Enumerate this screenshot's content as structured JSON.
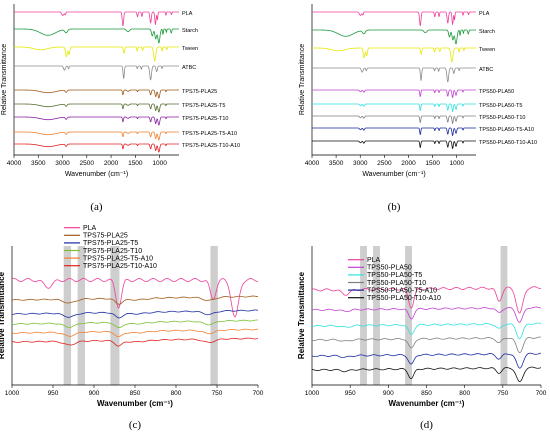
{
  "panels": [
    {
      "letter": "(a)",
      "xlabel": "Wavenumber (cm⁻¹)",
      "ylabel": "Relative Transmittance",
      "xlim": [
        4000,
        600
      ],
      "xticks": [
        4000,
        3500,
        3000,
        2500,
        2000,
        1500,
        1000
      ],
      "xtick_labels": [
        "4000",
        "3500",
        "3000",
        "2500",
        "2000",
        "1500",
        "1000"
      ],
      "series": [
        {
          "name": "PLA",
          "color": "#ee3e9a"
        },
        {
          "name": "Starch",
          "color": "#1a9a3a"
        },
        {
          "name": "Tween",
          "color": "#e8e800"
        },
        {
          "name": "ATBC",
          "color": "#8c8c8c"
        },
        {
          "name": "TPS75-PLA25",
          "color": "#a05a1a"
        },
        {
          "name": "TPS75-PLA25-T5",
          "color": "#556b2f"
        },
        {
          "name": "TPS75-PLA25-T10",
          "color": "#8a1fa0"
        },
        {
          "name": "TPS75-PLA25-T5-A10",
          "color": "#f08030"
        },
        {
          "name": "TPS75-PLA25-T10-A10",
          "color": "#e02020"
        }
      ]
    },
    {
      "letter": "(b)",
      "xlabel": "Wavenumber (cm⁻¹)",
      "ylabel": "Relative Transmittance",
      "xlim": [
        4000,
        600
      ],
      "xticks": [
        4000,
        3500,
        3000,
        2500,
        2000,
        1500,
        1000
      ],
      "xtick_labels": [
        "4000",
        "3500",
        "3000",
        "2500",
        "2000",
        "1500",
        "1000"
      ],
      "series": [
        {
          "name": "PLA",
          "color": "#ee3e9a"
        },
        {
          "name": "Starch",
          "color": "#1a9a3a"
        },
        {
          "name": "Tween",
          "color": "#e8e800"
        },
        {
          "name": "ATBC",
          "color": "#8c8c8c"
        },
        {
          "name": "TPS50-PLA50",
          "color": "#c040d0"
        },
        {
          "name": "TPS50-PLA50-T5",
          "color": "#30e0e0"
        },
        {
          "name": "TPS50-PLA50-T10",
          "color": "#808080"
        },
        {
          "name": "TPS50-PLA50-T5-A10",
          "color": "#1a2aa0"
        },
        {
          "name": "TPS50-PLA50-T10-A10",
          "color": "#111111"
        }
      ]
    },
    {
      "letter": "(c)",
      "xlabel": "Wavenumber (cm⁻¹)",
      "ylabel": "Relative Transmittance",
      "xlim": [
        1000,
        700
      ],
      "xticks": [
        1000,
        950,
        900,
        850,
        800,
        750,
        700
      ],
      "xtick_labels": [
        "1000",
        "950",
        "900",
        "850",
        "800",
        "750",
        "700"
      ],
      "bands": [
        [
          937,
          928
        ],
        [
          920,
          911
        ],
        [
          880,
          869
        ],
        [
          758,
          749
        ]
      ],
      "series": [
        {
          "name": "PLA",
          "color": "#ee3e9a"
        },
        {
          "name": "TPS75-PLA25",
          "color": "#a05a1a"
        },
        {
          "name": "TPS75-PLA25-T5",
          "color": "#1a2aa0"
        },
        {
          "name": "TPS75-PLA25-T10",
          "color": "#7ac030"
        },
        {
          "name": "TPS75-PLA25-T5-A10",
          "color": "#f08030"
        },
        {
          "name": "TPS75-PLA25-T10-A10",
          "color": "#e02020"
        }
      ]
    },
    {
      "letter": "(d)",
      "xlabel": "Wavenumber (cm⁻¹)",
      "ylabel": "Relative Transmittance",
      "xlim": [
        1000,
        700
      ],
      "xticks": [
        1000,
        950,
        900,
        850,
        800,
        750,
        700
      ],
      "xtick_labels": [
        "1000",
        "950",
        "900",
        "850",
        "800",
        "750",
        "700"
      ],
      "bands": [
        [
          937,
          928
        ],
        [
          920,
          911
        ],
        [
          878,
          869
        ],
        [
          753,
          744
        ]
      ],
      "series": [
        {
          "name": "PLA",
          "color": "#ee3e9a"
        },
        {
          "name": "TPS50-PLA50",
          "color": "#c040d0"
        },
        {
          "name": "TPS50-PLA50-T5",
          "color": "#30e0e0"
        },
        {
          "name": "TPS50-PLA50-T10",
          "color": "#808080"
        },
        {
          "name": "TPS50-PLA50-T5-A10",
          "color": "#1a2aa0"
        },
        {
          "name": "TPS50-PLA50-T10-A10",
          "color": "#111111"
        }
      ]
    }
  ],
  "chart_data": [
    {
      "type": "line",
      "panel": "(a)",
      "xlabel": "Wavenumber (cm⁻¹)",
      "ylabel": "Relative Transmittance",
      "xlim": [
        4000,
        600
      ],
      "grid": false,
      "series": [
        {
          "name": "PLA",
          "peaks": [
            2995,
            2945,
            1755,
            1455,
            1365,
            1185,
            1085,
            1045,
            870,
            755
          ]
        },
        {
          "name": "Starch",
          "peaks": [
            3300,
            2925,
            1650,
            1150,
            1080,
            1015,
            930,
            860,
            760
          ]
        },
        {
          "name": "Tween",
          "peaks": [
            3450,
            2920,
            2865,
            1735,
            1460,
            1350,
            1100,
            950,
            850
          ]
        },
        {
          "name": "ATBC",
          "peaks": [
            2960,
            2875,
            1740,
            1460,
            1375,
            1185,
            1060,
            950
          ]
        },
        {
          "name": "TPS75-PLA25",
          "peaks": [
            3300,
            2925,
            1755,
            1650,
            1455,
            1185,
            1080,
            1015,
            870
          ]
        },
        {
          "name": "TPS75-PLA25-T5",
          "peaks": [
            3300,
            2925,
            1755,
            1650,
            1455,
            1185,
            1080,
            1015,
            870
          ]
        },
        {
          "name": "TPS75-PLA25-T10",
          "peaks": [
            3300,
            2925,
            1755,
            1650,
            1455,
            1185,
            1080,
            1015,
            870
          ]
        },
        {
          "name": "TPS75-PLA25-T5-A10",
          "peaks": [
            3300,
            2925,
            1755,
            1650,
            1455,
            1185,
            1080,
            1015,
            870
          ]
        },
        {
          "name": "TPS75-PLA25-T10-A10",
          "peaks": [
            3300,
            2925,
            1755,
            1650,
            1455,
            1185,
            1080,
            1015,
            870
          ]
        }
      ]
    },
    {
      "type": "line",
      "panel": "(b)",
      "xlabel": "Wavenumber (cm⁻¹)",
      "ylabel": "Relative Transmittance",
      "xlim": [
        4000,
        600
      ],
      "grid": false,
      "series": [
        {
          "name": "PLA",
          "peaks": [
            2995,
            2945,
            1755,
            1455,
            1365,
            1185,
            1085,
            1045,
            870,
            755
          ]
        },
        {
          "name": "Starch",
          "peaks": [
            3300,
            2925,
            1650,
            1150,
            1080,
            1015,
            930,
            860,
            760
          ]
        },
        {
          "name": "Tween",
          "peaks": [
            3450,
            2920,
            2865,
            1735,
            1460,
            1350,
            1100,
            950,
            850
          ]
        },
        {
          "name": "ATBC",
          "peaks": [
            2960,
            2875,
            1740,
            1460,
            1375,
            1185,
            1060,
            950
          ]
        },
        {
          "name": "TPS50-PLA50",
          "peaks": [
            2995,
            2925,
            1755,
            1455,
            1365,
            1185,
            1085,
            1015,
            870
          ]
        },
        {
          "name": "TPS50-PLA50-T5",
          "peaks": [
            2995,
            2925,
            1755,
            1455,
            1365,
            1185,
            1085,
            1015,
            870
          ]
        },
        {
          "name": "TPS50-PLA50-T10",
          "peaks": [
            2995,
            2925,
            1755,
            1455,
            1365,
            1185,
            1085,
            1015,
            870
          ]
        },
        {
          "name": "TPS50-PLA50-T5-A10",
          "peaks": [
            2995,
            2925,
            1755,
            1455,
            1365,
            1185,
            1085,
            1015,
            870
          ]
        },
        {
          "name": "TPS50-PLA50-T10-A10",
          "peaks": [
            2995,
            2925,
            1755,
            1455,
            1365,
            1185,
            1085,
            1015,
            870
          ]
        }
      ]
    },
    {
      "type": "line",
      "panel": "(c)",
      "xlabel": "Wavenumber (cm⁻¹)",
      "ylabel": "Relative Transmittance",
      "xlim": [
        1000,
        700
      ],
      "grid": false,
      "highlight_bands": [
        [
          937,
          928
        ],
        [
          920,
          911
        ],
        [
          880,
          869
        ],
        [
          758,
          749
        ]
      ],
      "series": [
        {
          "name": "PLA",
          "peaks": [
            956,
            870,
            755,
            728
          ]
        },
        {
          "name": "TPS75-PLA25",
          "peaks": [
            930,
            870,
            760
          ]
        },
        {
          "name": "TPS75-PLA25-T5",
          "peaks": [
            930,
            870,
            760
          ]
        },
        {
          "name": "TPS75-PLA25-T10",
          "peaks": [
            930,
            870,
            760
          ]
        },
        {
          "name": "TPS75-PLA25-T5-A10",
          "peaks": [
            930,
            870,
            760
          ]
        },
        {
          "name": "TPS75-PLA25-T10-A10",
          "peaks": [
            930,
            870,
            760
          ]
        }
      ]
    },
    {
      "type": "line",
      "panel": "(d)",
      "xlabel": "Wavenumber (cm⁻¹)",
      "ylabel": "Relative Transmittance",
      "xlim": [
        1000,
        700
      ],
      "grid": false,
      "highlight_bands": [
        [
          937,
          928
        ],
        [
          920,
          911
        ],
        [
          878,
          869
        ],
        [
          753,
          744
        ]
      ],
      "series": [
        {
          "name": "PLA",
          "peaks": [
            956,
            870,
            755,
            728
          ]
        },
        {
          "name": "TPS50-PLA50",
          "peaks": [
            956,
            870,
            755,
            728
          ]
        },
        {
          "name": "TPS50-PLA50-T5",
          "peaks": [
            956,
            870,
            755,
            728
          ]
        },
        {
          "name": "TPS50-PLA50-T10",
          "peaks": [
            956,
            870,
            755,
            728
          ]
        },
        {
          "name": "TPS50-PLA50-T5-A10",
          "peaks": [
            956,
            870,
            755,
            728
          ]
        },
        {
          "name": "TPS50-PLA50-T10-A10",
          "peaks": [
            956,
            870,
            755,
            728
          ]
        }
      ]
    }
  ]
}
